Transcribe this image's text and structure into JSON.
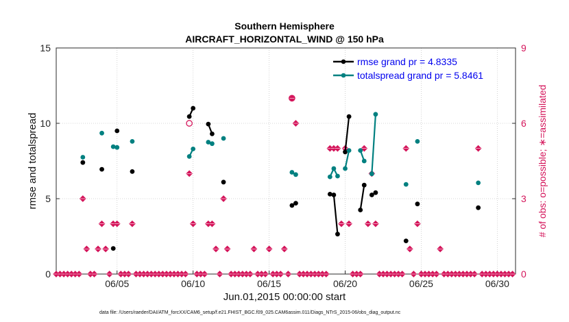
{
  "chart_data": {
    "type": "line",
    "title": "Southern Hemisphere",
    "subtitle": "AIRCRAFT_HORIZONTAL_WIND @ 150 hPa",
    "xlabel": "Jun.01,2015 00:00:00 start",
    "ylabel": "rmse and totalspread",
    "y2label": "# of obs: o=possible; ∗=assimilated",
    "xlim": [
      1,
      31.2
    ],
    "ylim": [
      0,
      15
    ],
    "y2lim": [
      0,
      9
    ],
    "x_ticks": [
      5,
      10,
      15,
      20,
      25,
      30
    ],
    "x_tick_labels": [
      "06/05",
      "06/10",
      "06/15",
      "06/20",
      "06/25",
      "06/30"
    ],
    "y_ticks": [
      0,
      5,
      10,
      15
    ],
    "y_tick_labels": [
      "0",
      "5",
      "10",
      "15"
    ],
    "y2_ticks": [
      0,
      3,
      6,
      9
    ],
    "y2_tick_labels": [
      "0",
      "3",
      "6",
      "9"
    ],
    "grid": true,
    "legend_position": "top-right",
    "colors": {
      "rmse": "#000000",
      "spread": "#008080",
      "obs": "#d4145a",
      "legend_text": "#0000ee"
    },
    "series": [
      {
        "name": "rmse grand pr = 4.8335",
        "color": "#000000",
        "segments": [
          [
            [
              2.75,
              7.4
            ]
          ],
          [
            [
              4.0,
              6.95
            ]
          ],
          [
            [
              4.75,
              1.7
            ]
          ],
          [
            [
              5.0,
              9.5
            ]
          ],
          [
            [
              6.0,
              6.8
            ]
          ],
          [
            [
              9.75,
              10.45
            ],
            [
              10.0,
              11.0
            ]
          ],
          [
            [
              11.0,
              9.95
            ],
            [
              11.25,
              9.3
            ]
          ],
          [
            [
              12.0,
              6.1
            ]
          ],
          [
            [
              16.5,
              4.55
            ],
            [
              16.75,
              4.7
            ]
          ],
          [
            [
              19.0,
              5.3
            ],
            [
              19.25,
              5.25
            ],
            [
              19.5,
              2.65
            ]
          ],
          [
            [
              20.0,
              8.1
            ],
            [
              20.25,
              10.45
            ]
          ],
          [
            [
              21.0,
              4.25
            ],
            [
              21.25,
              5.9
            ]
          ],
          [
            [
              21.75,
              5.25
            ],
            [
              22.0,
              5.4
            ]
          ],
          [
            [
              24.0,
              2.2
            ]
          ],
          [
            [
              24.75,
              4.65
            ]
          ],
          [
            [
              28.75,
              4.4
            ]
          ]
        ]
      },
      {
        "name": "totalspread grand pr = 5.8461",
        "color": "#008080",
        "segments": [
          [
            [
              2.75,
              7.75
            ]
          ],
          [
            [
              4.0,
              9.35
            ]
          ],
          [
            [
              4.75,
              8.45
            ]
          ],
          [
            [
              5.0,
              8.4
            ]
          ],
          [
            [
              6.0,
              8.8
            ]
          ],
          [
            [
              9.75,
              7.8
            ],
            [
              10.0,
              8.3
            ]
          ],
          [
            [
              11.0,
              8.75
            ],
            [
              11.25,
              8.65
            ]
          ],
          [
            [
              12.0,
              9.0
            ]
          ],
          [
            [
              16.5,
              6.75
            ],
            [
              16.75,
              6.6
            ]
          ],
          [
            [
              19.0,
              6.45
            ],
            [
              19.25,
              7.0
            ],
            [
              19.5,
              6.5
            ]
          ],
          [
            [
              20.0,
              7.0
            ],
            [
              20.25,
              8.2
            ]
          ],
          [
            [
              21.0,
              8.2
            ],
            [
              21.25,
              7.5
            ]
          ],
          [
            [
              21.75,
              6.65
            ],
            [
              22.0,
              10.6
            ]
          ],
          [
            [
              24.0,
              5.95
            ]
          ],
          [
            [
              24.75,
              8.8
            ]
          ],
          [
            [
              28.75,
              6.05
            ]
          ]
        ]
      },
      {
        "name": "obs_assimilated",
        "axis": "right",
        "color": "#d4145a",
        "points": [
          [
            1.0,
            0
          ],
          [
            1.25,
            0
          ],
          [
            1.5,
            0
          ],
          [
            1.75,
            0
          ],
          [
            2.0,
            0
          ],
          [
            2.25,
            0
          ],
          [
            2.5,
            0
          ],
          [
            2.75,
            3
          ],
          [
            3.0,
            1
          ],
          [
            3.25,
            0
          ],
          [
            3.5,
            0
          ],
          [
            3.75,
            1
          ],
          [
            4.0,
            2
          ],
          [
            4.25,
            1
          ],
          [
            4.5,
            0
          ],
          [
            4.75,
            2
          ],
          [
            5.0,
            2
          ],
          [
            5.25,
            0
          ],
          [
            5.5,
            0
          ],
          [
            5.75,
            0
          ],
          [
            6.0,
            2
          ],
          [
            6.25,
            0
          ],
          [
            6.5,
            0
          ],
          [
            6.75,
            0
          ],
          [
            7.0,
            0
          ],
          [
            7.25,
            0
          ],
          [
            7.5,
            0
          ],
          [
            7.75,
            0
          ],
          [
            8.0,
            0
          ],
          [
            8.25,
            0
          ],
          [
            8.5,
            0
          ],
          [
            8.75,
            0
          ],
          [
            9.0,
            0
          ],
          [
            9.25,
            0
          ],
          [
            9.5,
            0
          ],
          [
            9.75,
            4
          ],
          [
            10.0,
            2
          ],
          [
            10.25,
            0
          ],
          [
            10.5,
            0
          ],
          [
            10.75,
            0
          ],
          [
            11.0,
            2
          ],
          [
            11.25,
            2
          ],
          [
            11.5,
            1
          ],
          [
            11.75,
            0
          ],
          [
            12.0,
            3
          ],
          [
            12.25,
            1
          ],
          [
            12.5,
            0
          ],
          [
            12.75,
            0
          ],
          [
            13.0,
            0
          ],
          [
            13.25,
            0
          ],
          [
            13.5,
            0
          ],
          [
            13.75,
            0
          ],
          [
            14.0,
            1
          ],
          [
            14.25,
            0
          ],
          [
            14.5,
            0
          ],
          [
            14.75,
            0
          ],
          [
            15.0,
            1
          ],
          [
            15.25,
            0
          ],
          [
            15.5,
            0
          ],
          [
            15.75,
            0
          ],
          [
            16.0,
            1
          ],
          [
            16.25,
            0
          ],
          [
            16.5,
            7
          ],
          [
            16.75,
            6
          ],
          [
            17.0,
            0
          ],
          [
            17.25,
            0
          ],
          [
            17.5,
            0
          ],
          [
            17.75,
            0
          ],
          [
            18.0,
            0
          ],
          [
            18.25,
            0
          ],
          [
            18.5,
            0
          ],
          [
            18.75,
            0
          ],
          [
            19.0,
            5
          ],
          [
            19.25,
            5
          ],
          [
            19.5,
            5
          ],
          [
            19.75,
            2
          ],
          [
            20.0,
            5
          ],
          [
            20.25,
            2
          ],
          [
            20.5,
            0
          ],
          [
            20.75,
            0
          ],
          [
            21.0,
            0
          ],
          [
            21.25,
            5
          ],
          [
            21.5,
            2
          ],
          [
            21.75,
            4
          ],
          [
            22.0,
            2
          ],
          [
            22.25,
            0
          ],
          [
            22.5,
            0
          ],
          [
            22.75,
            0
          ],
          [
            23.0,
            0
          ],
          [
            23.25,
            0
          ],
          [
            23.5,
            0
          ],
          [
            23.75,
            0
          ],
          [
            24.0,
            5
          ],
          [
            24.25,
            1
          ],
          [
            24.5,
            0
          ],
          [
            24.75,
            2
          ],
          [
            25.0,
            0
          ],
          [
            25.25,
            0
          ],
          [
            25.5,
            0
          ],
          [
            25.75,
            0
          ],
          [
            26.0,
            0
          ],
          [
            26.25,
            1
          ],
          [
            26.5,
            0
          ],
          [
            26.75,
            0
          ],
          [
            27.0,
            0
          ],
          [
            27.25,
            0
          ],
          [
            27.5,
            0
          ],
          [
            27.75,
            0
          ],
          [
            28.0,
            0
          ],
          [
            28.25,
            0
          ],
          [
            28.5,
            0
          ],
          [
            28.75,
            5
          ],
          [
            29.0,
            0
          ],
          [
            29.25,
            0
          ],
          [
            29.5,
            0
          ],
          [
            29.75,
            0
          ],
          [
            30.0,
            0
          ],
          [
            30.25,
            0
          ],
          [
            30.5,
            0
          ],
          [
            30.75,
            0
          ],
          [
            31.0,
            0
          ]
        ]
      },
      {
        "name": "obs_possible",
        "axis": "right",
        "color": "#d4145a",
        "points": [
          [
            9.75,
            6
          ],
          [
            16.5,
            7
          ]
        ]
      }
    ],
    "legend": [
      {
        "label": "rmse grand pr = 4.8335",
        "color": "#000000"
      },
      {
        "label": "totalspread grand pr = 5.8461",
        "color": "#008080"
      }
    ],
    "footnote": "data file: /Users/raeder/DAI/ATM_forcXX/CAM6_setup/f.e21.FHIST_BGC.f09_025.CAM6assim.011/Diags_NTrS_2015-06/obs_diag_output.nc"
  }
}
